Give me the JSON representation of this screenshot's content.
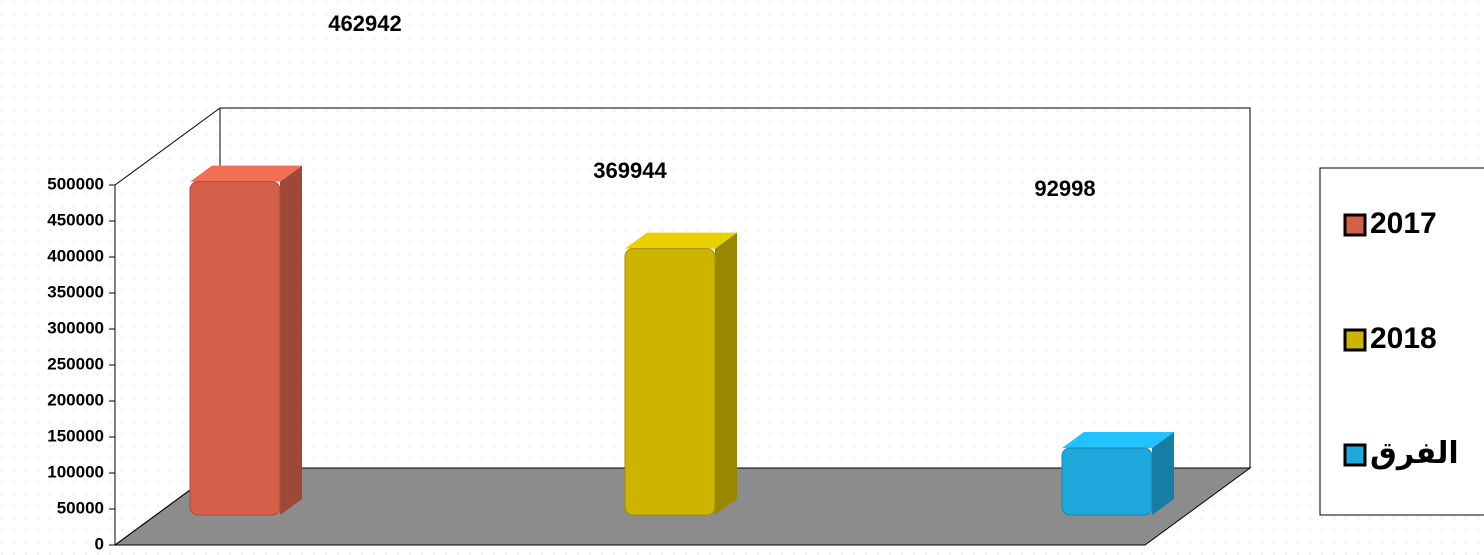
{
  "chart_data": {
    "type": "bar3d",
    "categories": [
      null
    ],
    "series": [
      {
        "name": "2017",
        "color": "#d4604a",
        "values": [
          462942
        ]
      },
      {
        "name": "2018",
        "color": "#ccb400",
        "values": [
          369944
        ]
      },
      {
        "name": "الفرق",
        "color": "#1ea8dc",
        "values": [
          92998
        ]
      }
    ],
    "ylim": [
      0,
      500000
    ],
    "yticks": [
      0,
      50000,
      100000,
      150000,
      200000,
      250000,
      300000,
      350000,
      400000,
      450000,
      500000
    ],
    "legend": "right"
  }
}
